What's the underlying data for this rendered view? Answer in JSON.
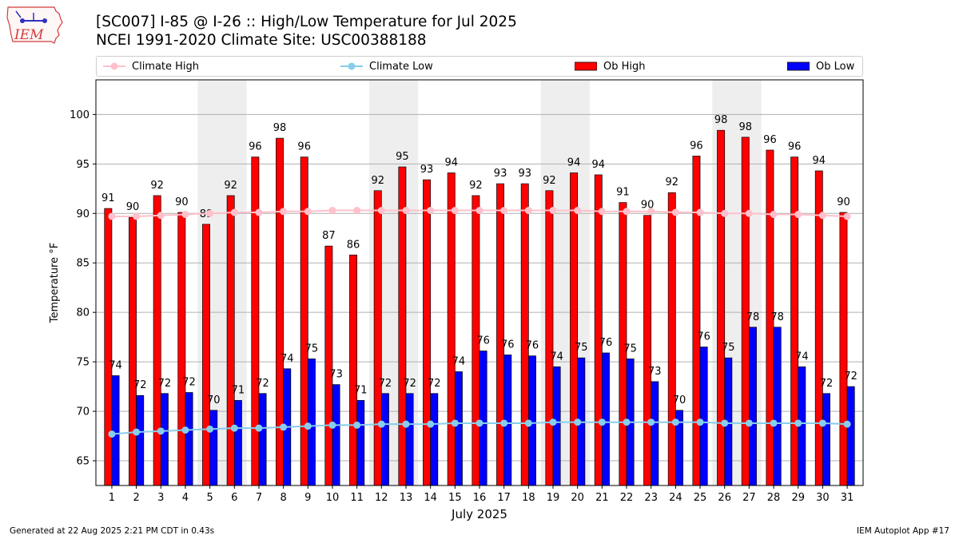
{
  "header": {
    "title_line1": "[SC007] I-85 @ I-26  :: High/Low Temperature for Jul 2025",
    "title_line2": "NCEI 1991-2020 Climate Site: USC00388188",
    "logo_text": "IEM"
  },
  "legend": {
    "climate_high": "Climate High",
    "climate_low": "Climate Low",
    "ob_high": "Ob High",
    "ob_low": "Ob Low"
  },
  "footer": {
    "generated": "Generated at 22 Aug 2025 2:21 PM CDT in 0.43s",
    "app": "IEM Autoplot App #17"
  },
  "colors": {
    "ob_high": "#ff0000",
    "ob_low": "#0000ff",
    "climate_high": "#ffc0cb",
    "climate_low": "#87ceeb",
    "weekend_shade": "#eeeeee",
    "grid": "#b0b0b0"
  },
  "chart_data": {
    "type": "bar",
    "xlabel": "July 2025",
    "ylabel": "Temperature °F",
    "ylim": [
      62.5,
      103.5
    ],
    "yticks": [
      65,
      70,
      75,
      80,
      85,
      90,
      95,
      100
    ],
    "grid": "horizontal",
    "legend_position": "top",
    "x": [
      1,
      2,
      3,
      4,
      5,
      6,
      7,
      8,
      9,
      10,
      11,
      12,
      13,
      14,
      15,
      16,
      17,
      18,
      19,
      20,
      21,
      22,
      23,
      24,
      25,
      26,
      27,
      28,
      29,
      30,
      31
    ],
    "weekend_shading": [
      [
        5,
        6
      ],
      [
        12,
        13
      ],
      [
        19,
        20
      ],
      [
        26,
        27
      ]
    ],
    "series": [
      {
        "name": "Ob High",
        "kind": "bar",
        "values": [
          90.5,
          89.6,
          91.8,
          90.1,
          88.9,
          91.8,
          95.7,
          97.6,
          95.7,
          86.7,
          85.8,
          92.3,
          94.7,
          93.4,
          94.1,
          91.8,
          93.0,
          93.0,
          92.3,
          94.1,
          93.9,
          91.1,
          89.8,
          92.1,
          95.8,
          98.4,
          97.7,
          96.4,
          95.7,
          94.3,
          90.1
        ],
        "labels": [
          "91",
          "90",
          "92",
          "90",
          "89",
          "92",
          "96",
          "98",
          "96",
          "87",
          "86",
          "92",
          "95",
          "93",
          "94",
          "92",
          "93",
          "93",
          "92",
          "94",
          "94",
          "91",
          "90",
          "92",
          "96",
          "98",
          "98",
          "96",
          "96",
          "94",
          "90"
        ]
      },
      {
        "name": "Ob Low",
        "kind": "bar",
        "values": [
          73.6,
          71.6,
          71.8,
          71.9,
          70.1,
          71.1,
          71.8,
          74.3,
          75.3,
          72.7,
          71.1,
          71.8,
          71.8,
          71.8,
          74.0,
          76.1,
          75.7,
          75.6,
          74.5,
          75.4,
          75.9,
          75.3,
          73.0,
          70.1,
          76.5,
          75.4,
          78.5,
          78.5,
          74.5,
          71.8,
          72.5
        ],
        "labels": [
          "74",
          "72",
          "72",
          "72",
          "70",
          "71",
          "72",
          "74",
          "75",
          "73",
          "71",
          "72",
          "72",
          "72",
          "74",
          "76",
          "76",
          "76",
          "74",
          "75",
          "76",
          "75",
          "73",
          "70",
          "76",
          "75",
          "78",
          "78",
          "74",
          "72",
          "72"
        ]
      },
      {
        "name": "Climate High",
        "kind": "line",
        "values": [
          89.7,
          89.7,
          89.8,
          89.9,
          90.0,
          90.1,
          90.1,
          90.2,
          90.2,
          90.3,
          90.3,
          90.3,
          90.3,
          90.3,
          90.3,
          90.3,
          90.3,
          90.3,
          90.3,
          90.3,
          90.2,
          90.2,
          90.2,
          90.1,
          90.1,
          90.0,
          90.0,
          89.9,
          89.9,
          89.8,
          89.7
        ]
      },
      {
        "name": "Climate Low",
        "kind": "line",
        "values": [
          67.7,
          67.9,
          68.0,
          68.1,
          68.2,
          68.3,
          68.3,
          68.4,
          68.5,
          68.6,
          68.6,
          68.7,
          68.7,
          68.7,
          68.8,
          68.8,
          68.8,
          68.8,
          68.9,
          68.9,
          68.9,
          68.9,
          68.9,
          68.9,
          68.9,
          68.8,
          68.8,
          68.8,
          68.8,
          68.8,
          68.7
        ]
      }
    ]
  }
}
